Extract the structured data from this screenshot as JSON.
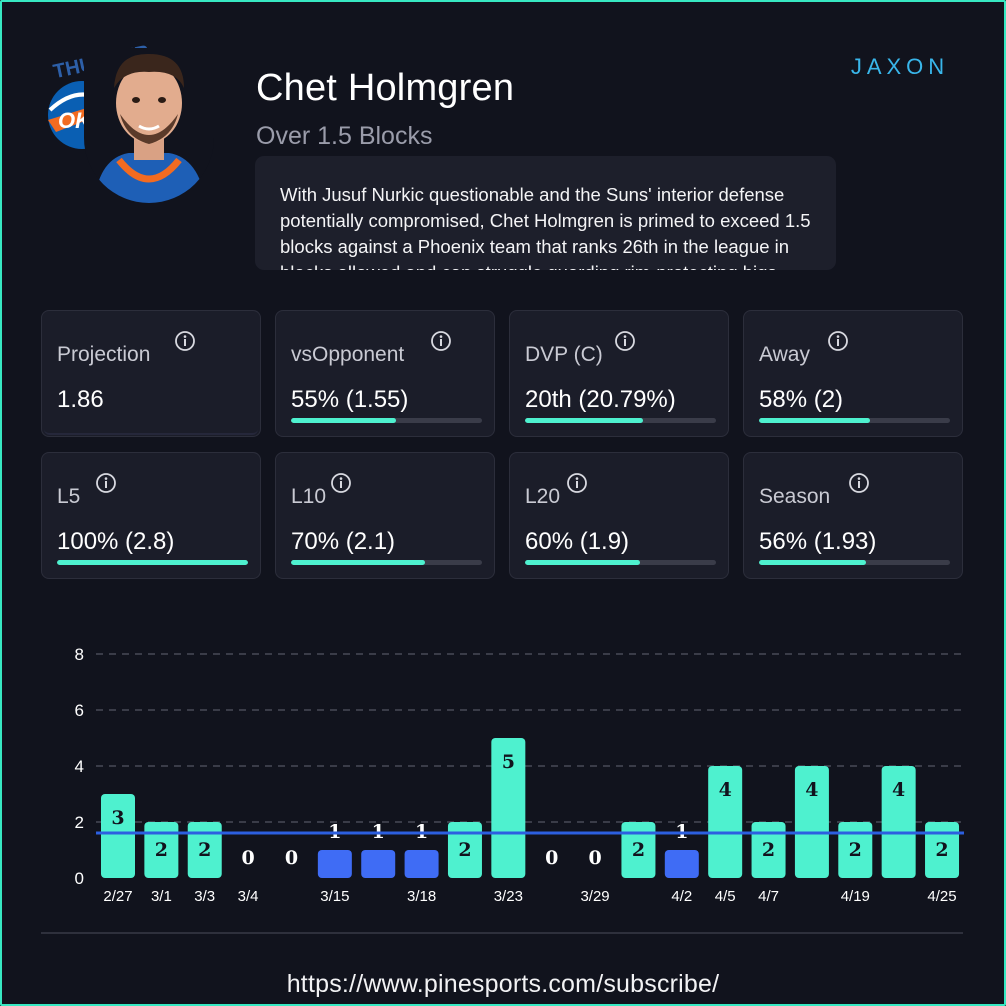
{
  "header": {
    "player_name": "Chet Holmgren",
    "prop": "Over 1.5 Blocks",
    "brand": "JAXON",
    "team_logo_text": "THUNDER",
    "team_logo_abbr": "OKC",
    "analysis": "With Jusuf Nurkic questionable and the Suns' interior defense potentially compromised, Chet Holmgren is primed to exceed 1.5 blocks against a Phoenix team that ranks 26th in the league in blocks allowed and can struggle guarding rim-protecting bigs."
  },
  "stats": [
    {
      "label": "Projection",
      "value": "1.86",
      "fill": null
    },
    {
      "label": "vsOpponent",
      "value": "55% (1.55)",
      "fill": 0.55
    },
    {
      "label": "DVP (C)",
      "value": "20th (20.79%)",
      "fill": 0.62
    },
    {
      "label": "Away",
      "value": "58% (2)",
      "fill": 0.58
    },
    {
      "label": "L5",
      "value": "100% (2.8)",
      "fill": 1.0
    },
    {
      "label": "L10",
      "value": "70% (2.1)",
      "fill": 0.7
    },
    {
      "label": "L20",
      "value": "60% (1.9)",
      "fill": 0.6
    },
    {
      "label": "Season",
      "value": "56% (1.93)",
      "fill": 0.56
    }
  ],
  "chart_data": {
    "type": "bar",
    "title": "",
    "xlabel": "",
    "ylabel": "",
    "ylim": [
      0,
      8
    ],
    "yticks": [
      0,
      2,
      4,
      6,
      8
    ],
    "threshold": 1.5,
    "categories": [
      "2/27",
      "3/1",
      "3/3",
      "3/4",
      "",
      "3/15",
      "",
      "3/18",
      "",
      "3/23",
      "",
      "3/29",
      "",
      "4/2",
      "4/5",
      "4/7",
      "",
      "4/19",
      "",
      "4/25"
    ],
    "values": [
      3,
      2,
      2,
      0,
      0,
      1,
      1,
      1,
      2,
      5,
      0,
      0,
      2,
      1,
      4,
      2,
      4,
      2,
      4,
      2
    ],
    "colors": {
      "over": "#4ef1cf",
      "under": "#3f6cf5",
      "threshold_line": "#2c5fe0",
      "grid": "#3a3c48",
      "tick": "#ffffff"
    }
  },
  "footer": {
    "url": "https://www.pinesports.com/subscribe/"
  }
}
